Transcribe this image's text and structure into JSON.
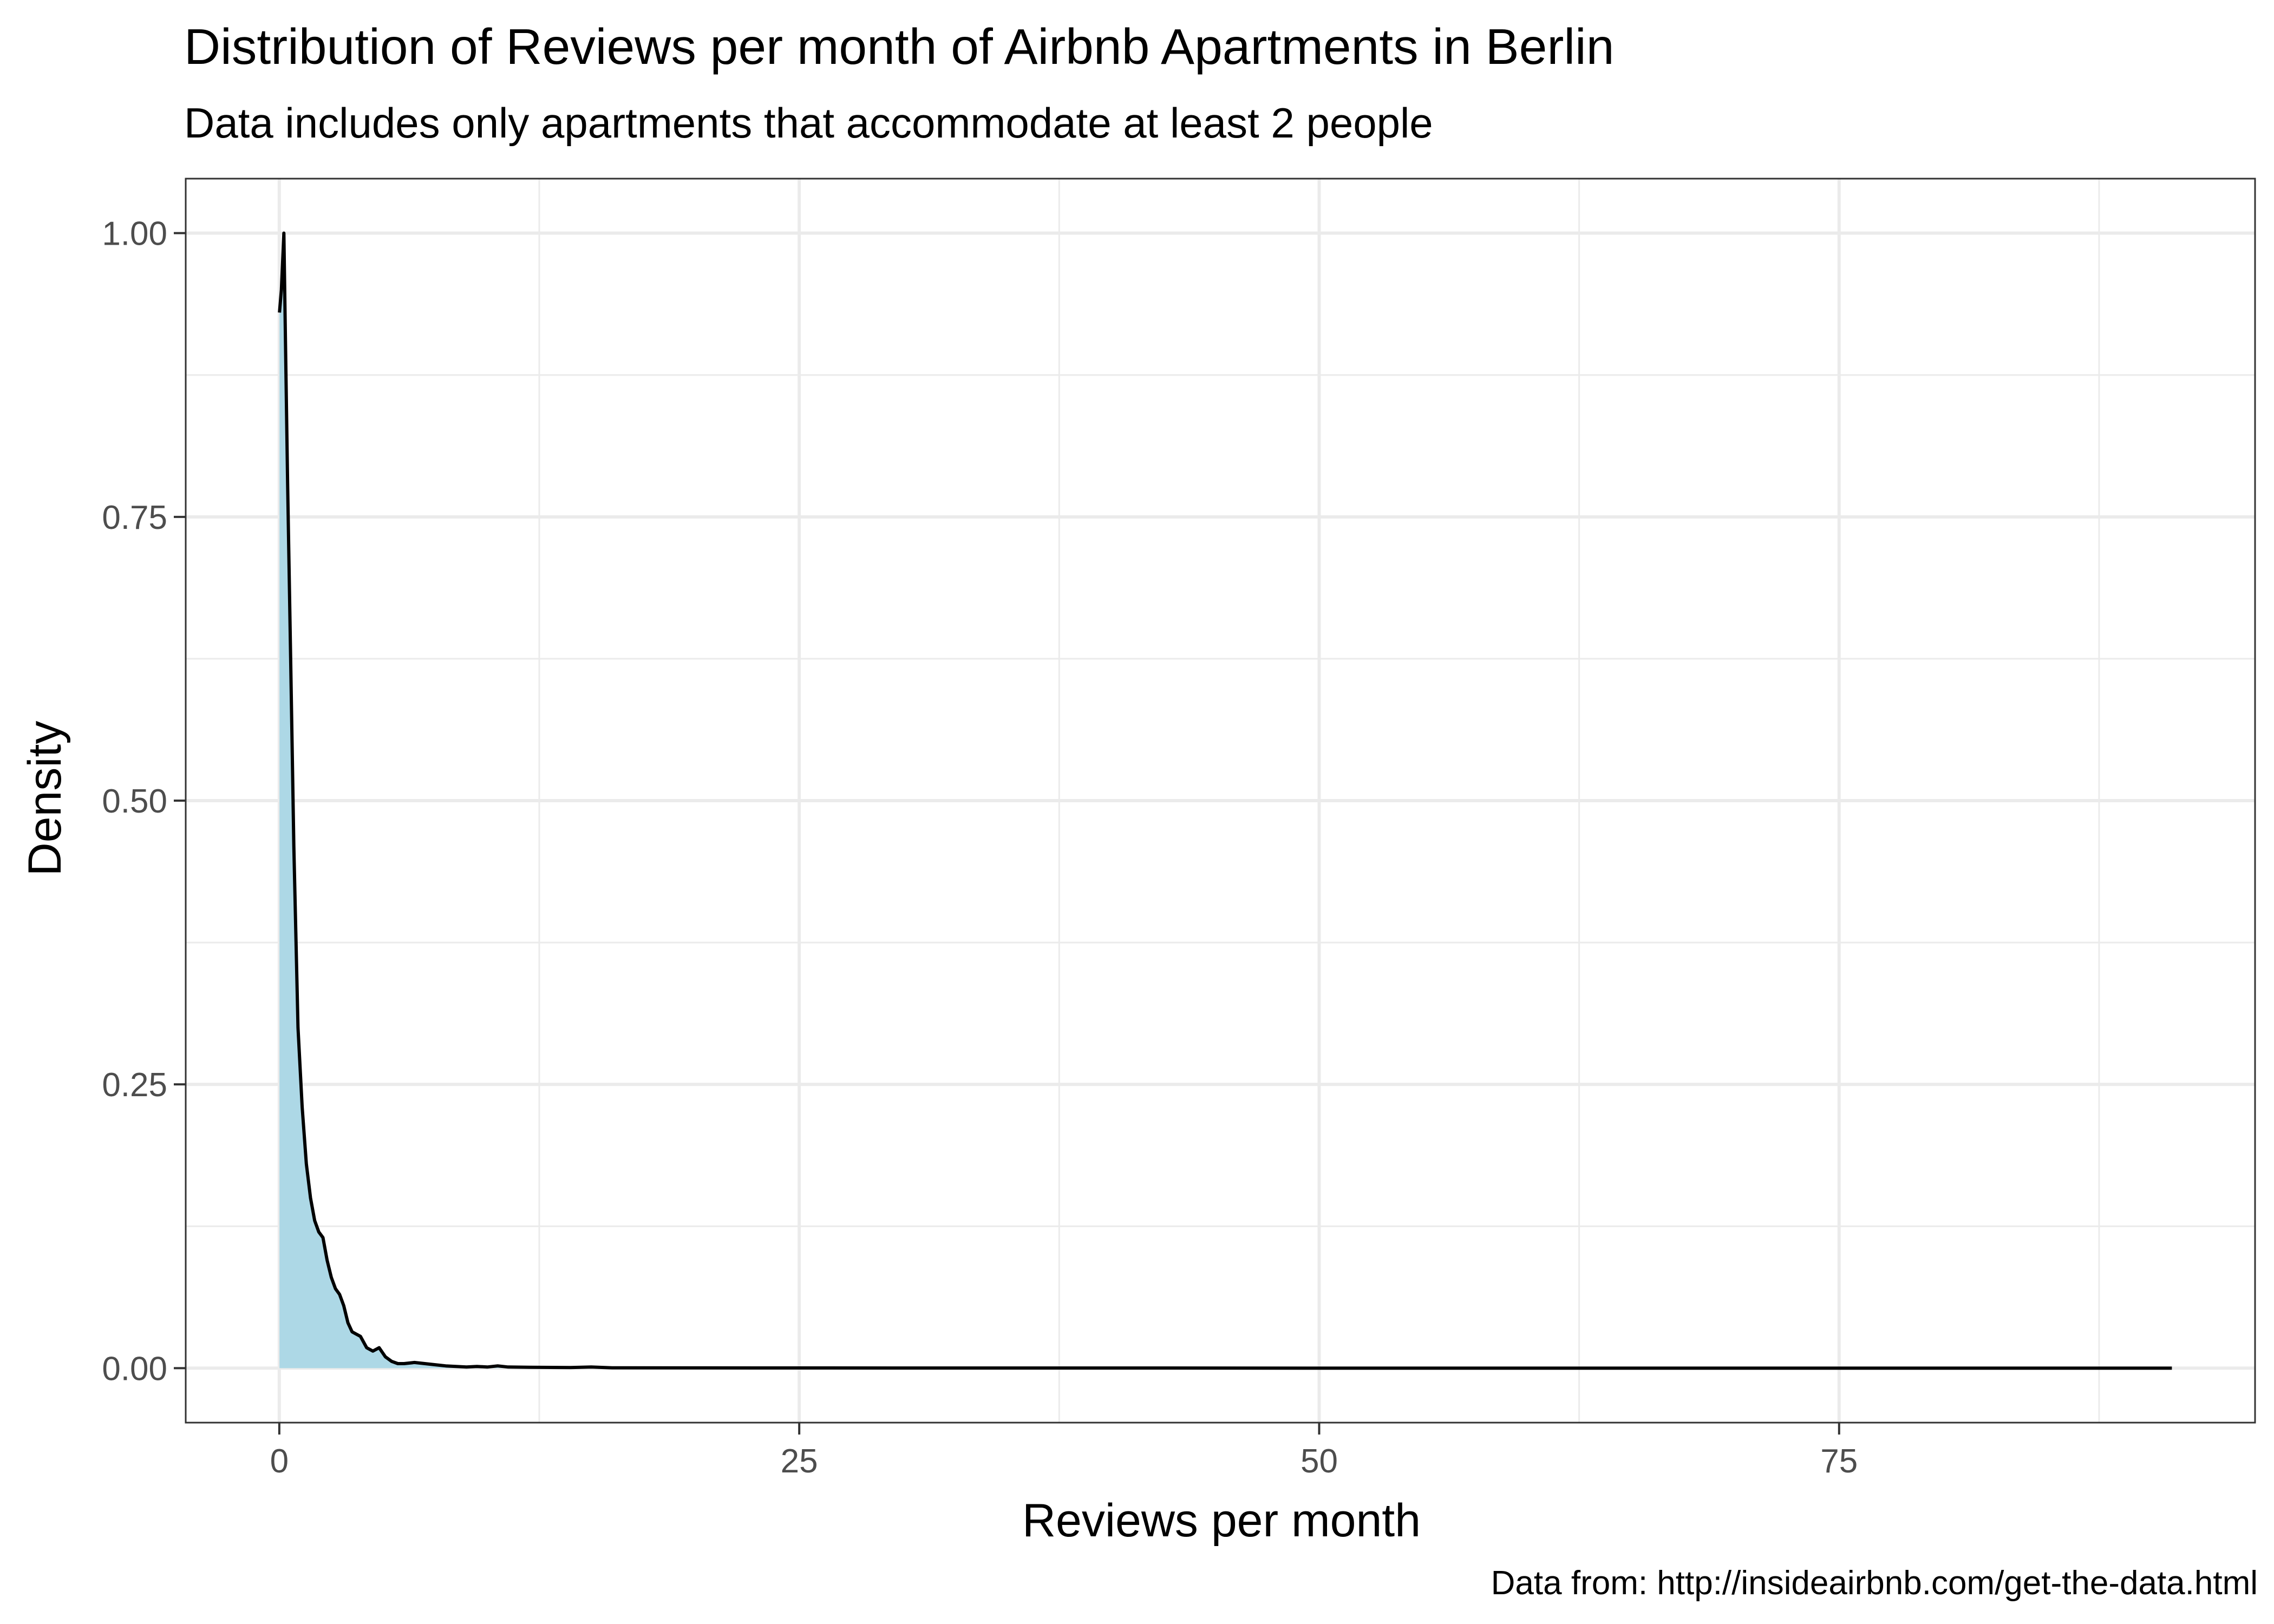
{
  "chart_data": {
    "type": "area",
    "title": "Distribution of Reviews per month of Airbnb Apartments in Berlin",
    "subtitle": "Data includes only apartments that accommodate at least 2 people",
    "xlabel": "Reviews per month",
    "ylabel": "Density",
    "caption": "Data from: http://insideairbnb.com/get-the-data.html",
    "xlim": [
      -4.5,
      95
    ],
    "ylim": [
      -0.048,
      1.048
    ],
    "x_ticks": [
      0,
      25,
      50,
      75
    ],
    "x_tick_labels": [
      "0",
      "25",
      "50",
      "75"
    ],
    "y_ticks": [
      0,
      0.25,
      0.5,
      0.75,
      1.0
    ],
    "y_tick_labels": [
      "0.00",
      "0.25",
      "0.50",
      "0.75",
      "1.00"
    ],
    "grid": true,
    "fill_color": "#add8e6",
    "line_color": "#000000",
    "series": [
      {
        "x": [
          0.01,
          0.1,
          0.22,
          0.3,
          0.4,
          0.55,
          0.7,
          0.9,
          1.1,
          1.3,
          1.5,
          1.7,
          1.9,
          2.1,
          2.3,
          2.5,
          2.7,
          2.9,
          3.1,
          3.3,
          3.5,
          3.7,
          3.9,
          4.2,
          4.5,
          4.8,
          5.1,
          5.4,
          5.7,
          6.0,
          6.5,
          7.0,
          7.5,
          8.0,
          8.5,
          9.0,
          9.5,
          10.0,
          10.5,
          11.0,
          12.0,
          14.0,
          15.0,
          16.0,
          20.0,
          30.0,
          40.0,
          50.0,
          60.0,
          70.0,
          80.0,
          91.0
        ],
        "y": [
          0.93,
          0.95,
          1.0,
          0.9,
          0.78,
          0.62,
          0.46,
          0.3,
          0.23,
          0.18,
          0.15,
          0.13,
          0.12,
          0.115,
          0.095,
          0.08,
          0.07,
          0.065,
          0.055,
          0.04,
          0.032,
          0.03,
          0.028,
          0.018,
          0.015,
          0.018,
          0.01,
          0.006,
          0.004,
          0.004,
          0.005,
          0.004,
          0.003,
          0.002,
          0.0015,
          0.001,
          0.0015,
          0.001,
          0.002,
          0.001,
          0.0008,
          0.0005,
          0.001,
          0.0003,
          0.0002,
          0.0001,
          0.0001,
          0.0,
          0.0,
          0.0,
          0.0,
          0.0
        ]
      }
    ]
  }
}
